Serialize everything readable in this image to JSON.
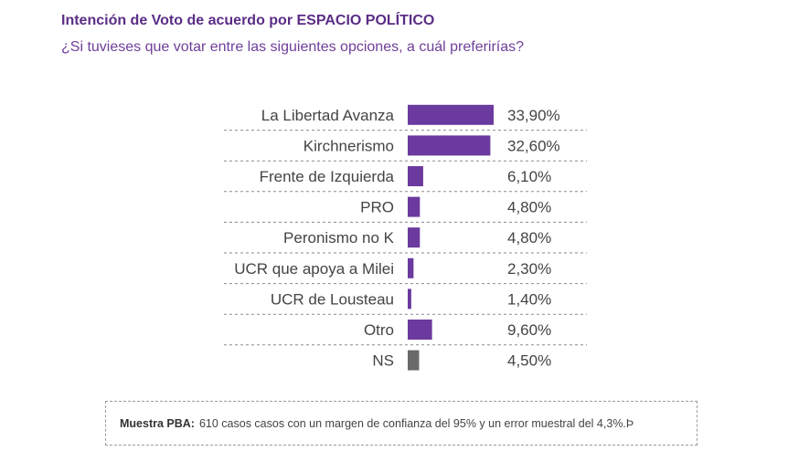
{
  "header": {
    "title": "Intención de Voto de acuerdo por ESPACIO POLÍTICO",
    "subtitle": "¿Si tuvieses que votar entre las siguientes opciones, a cuál preferirías?"
  },
  "chart_data": {
    "type": "bar",
    "orientation": "horizontal",
    "categories": [
      "La Libertad Avanza",
      "Kirchnerismo",
      "Frente de Izquierda",
      "PRO",
      "Peronismo no K",
      "UCR que apoya a Milei",
      "UCR de Lousteau",
      "Otro",
      "NS"
    ],
    "values": [
      33.9,
      32.6,
      6.1,
      4.8,
      4.8,
      2.3,
      1.4,
      9.6,
      4.5
    ],
    "value_labels": [
      "33,90%",
      "32,60%",
      "6,10%",
      "4,80%",
      "4,80%",
      "2,30%",
      "1,40%",
      "9,60%",
      "4,50%"
    ],
    "bar_colors": [
      "#6b3a9e",
      "#6b3a9e",
      "#6b3a9e",
      "#6b3a9e",
      "#6b3a9e",
      "#6b3a9e",
      "#6b3a9e",
      "#6b3a9e",
      "#6a6a6a"
    ],
    "title": "Intención de Voto de acuerdo por ESPACIO POLÍTICO",
    "xlabel": "",
    "ylabel": "",
    "legend": "none",
    "grid": false
  },
  "note": {
    "label": "Muestra PBA:",
    "text": "610 casos casos con un margen de confianza del 95% y un error muestral del 4,3%.Þ"
  }
}
